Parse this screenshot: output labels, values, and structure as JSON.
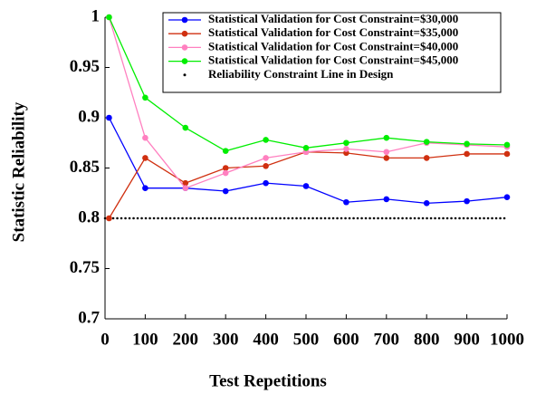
{
  "chart_data": {
    "type": "line",
    "x_label": "Test Repetitions",
    "y_label": "Statistic Reliability",
    "x": [
      10,
      100,
      200,
      300,
      400,
      500,
      600,
      700,
      800,
      900,
      1000
    ],
    "series": [
      {
        "name": "Statistical Validation for Cost Constraint=$30,000",
        "color": "#0000ff",
        "values": [
          0.9,
          0.83,
          0.83,
          0.827,
          0.835,
          0.832,
          0.816,
          0.819,
          0.815,
          0.817,
          0.821
        ]
      },
      {
        "name": "Statistical Validation for Cost Constraint=$35,000",
        "color": "#d03010",
        "values": [
          0.8,
          0.86,
          0.835,
          0.85,
          0.852,
          0.866,
          0.865,
          0.86,
          0.86,
          0.864,
          0.864
        ]
      },
      {
        "name": "Statistical Validation for Cost Constraint=$40,000",
        "color": "#ff80c0",
        "values": [
          1,
          0.88,
          0.83,
          0.845,
          0.86,
          0.866,
          0.869,
          0.866,
          0.875,
          0.873,
          0.871
        ]
      },
      {
        "name": "Statistical Validation for Cost Constraint=$45,000",
        "color": "#00ee00",
        "values": [
          1,
          0.92,
          0.89,
          0.867,
          0.878,
          0.87,
          0.875,
          0.88,
          0.876,
          0.874,
          0.873
        ]
      }
    ],
    "constraint": {
      "name": "Reliability Constraint Line in Design",
      "value": 0.8,
      "color": "#000000"
    },
    "xlim": [
      0,
      1000
    ],
    "xticks": [
      0,
      100,
      200,
      300,
      400,
      500,
      600,
      700,
      800,
      900,
      1000
    ],
    "ylim": [
      0.7,
      1
    ],
    "yticks": [
      0.7,
      0.75,
      0.8,
      0.85,
      0.9,
      0.95,
      1
    ],
    "legend": "top-right"
  }
}
